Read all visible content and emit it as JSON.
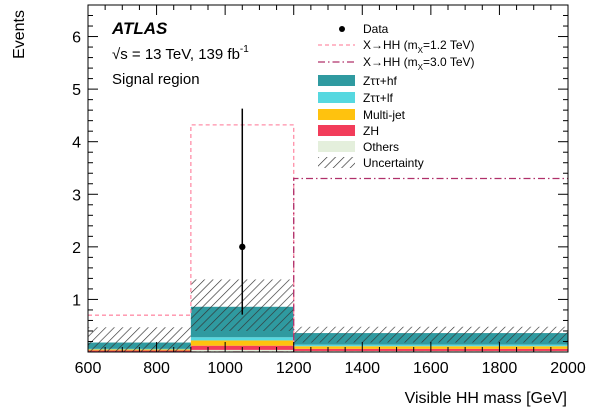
{
  "chart_data": {
    "type": "bar",
    "stacked": true,
    "title": "",
    "xlabel": "Visible HH mass [GeV]",
    "ylabel": "Events",
    "xlim": [
      600,
      2000
    ],
    "ylim": [
      0,
      6.6
    ],
    "x_ticks": [
      "600",
      "800",
      "1000",
      "1200",
      "1400",
      "1600",
      "1800",
      "2000"
    ],
    "y_ticks": [
      "1",
      "2",
      "3",
      "4",
      "5",
      "6"
    ],
    "bins": [
      [
        600,
        900
      ],
      [
        900,
        1200
      ],
      [
        1200,
        2000
      ]
    ],
    "annotations": {
      "experiment": "ATLAS",
      "energy_prefix": "√s = 13 TeV, 139 fb",
      "energy_sup": "-1",
      "region": "Signal region"
    },
    "legend": {
      "placement": "top-right",
      "data_label": "Data",
      "signal_12_text": "X→HH (m",
      "signal_12_sub": "X",
      "signal_12_tail": "=1.2 TeV)",
      "signal_30_text": "X→HH (m",
      "signal_30_sub": "X",
      "signal_30_tail": "=3.0 TeV)",
      "uncertainty_label": "Uncertainty"
    },
    "stack_order": [
      "Others",
      "ZH",
      "Multi-jet",
      "Zττ+lf",
      "Zττ+hf"
    ],
    "series": [
      {
        "name": "Zττ+hf",
        "color": "#2f9aa0",
        "values": [
          0.12,
          0.58,
          0.22
        ]
      },
      {
        "name": "Zττ+lf",
        "color": "#56d8e0",
        "values": [
          0.01,
          0.06,
          0.03
        ]
      },
      {
        "name": "Multi-jet",
        "color": "#ffc20e",
        "values": [
          0.02,
          0.1,
          0.05
        ]
      },
      {
        "name": "ZH",
        "color": "#f23c5a",
        "values": [
          0.02,
          0.08,
          0.04
        ]
      },
      {
        "name": "Others",
        "color": "#e4efdc",
        "values": [
          0.01,
          0.04,
          0.02
        ]
      }
    ],
    "uncertainty_band": {
      "low": [
        0.0,
        0.4,
        0.18
      ],
      "high": [
        0.47,
        1.38,
        0.48
      ]
    },
    "signals": [
      {
        "name": "X→HH (mX=1.2 TeV)",
        "style": "dashed",
        "color": "#ff8fa8",
        "values": [
          0.7,
          4.32,
          0.0
        ]
      },
      {
        "name": "X→HH (mX=3.0 TeV)",
        "style": "dash-dot",
        "color": "#b0306a",
        "values": [
          0.0,
          0.0,
          3.3
        ]
      }
    ],
    "data_points": [
      {
        "x": 1050,
        "y": 2.0,
        "err_low": 1.29,
        "err_high": 2.63
      }
    ]
  }
}
